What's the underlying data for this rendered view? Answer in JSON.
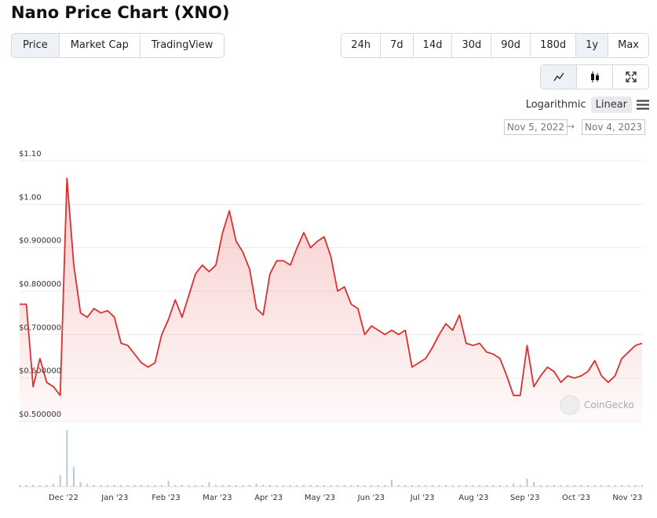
{
  "header": {
    "title": "Nano Price Chart (XNO)"
  },
  "tabs": [
    "Price",
    "Market Cap",
    "TradingView"
  ],
  "ranges": [
    "24h",
    "7d",
    "14d",
    "30d",
    "90d",
    "180d",
    "1y",
    "Max"
  ],
  "scale_options": [
    "Logarithmic",
    "Linear"
  ],
  "date_from": "Nov 5, 2022",
  "date_to": "Nov 4, 2023",
  "watermark": "CoinGecko",
  "chart_data": {
    "type": "line",
    "series": [
      {
        "name": "Price",
        "color": "#dc2f2f",
        "values": [
          0.77,
          0.77,
          0.58,
          0.645,
          0.59,
          0.58,
          0.56,
          1.06,
          0.86,
          0.75,
          0.74,
          0.76,
          0.75,
          0.755,
          0.74,
          0.68,
          0.675,
          0.655,
          0.635,
          0.625,
          0.635,
          0.7,
          0.735,
          0.78,
          0.74,
          0.79,
          0.84,
          0.86,
          0.845,
          0.86,
          0.935,
          0.985,
          0.915,
          0.89,
          0.85,
          0.76,
          0.745,
          0.84,
          0.87,
          0.87,
          0.86,
          0.9,
          0.935,
          0.9,
          0.915,
          0.925,
          0.88,
          0.8,
          0.81,
          0.77,
          0.76,
          0.7,
          0.72,
          0.71,
          0.7,
          0.71,
          0.7,
          0.71,
          0.625,
          0.635,
          0.645,
          0.67,
          0.7,
          0.725,
          0.71,
          0.745,
          0.68,
          0.675,
          0.68,
          0.66,
          0.655,
          0.645,
          0.605,
          0.56,
          0.56,
          0.675,
          0.58,
          0.605,
          0.625,
          0.615,
          0.59,
          0.605,
          0.6,
          0.605,
          0.615,
          0.64,
          0.605,
          0.59,
          0.605,
          0.645,
          0.66,
          0.675,
          0.68
        ]
      }
    ],
    "volume": {
      "color": "#b9c7dc",
      "values": [
        3,
        3,
        3,
        3,
        3,
        5,
        20,
        100,
        35,
        8,
        5,
        3,
        3,
        3,
        3,
        3,
        3,
        3,
        3,
        3,
        3,
        3,
        10,
        3,
        3,
        3,
        3,
        3,
        8,
        3,
        3,
        3,
        3,
        3,
        3,
        5,
        3,
        3,
        3,
        3,
        3,
        3,
        3,
        3,
        3,
        3,
        3,
        3,
        3,
        3,
        3,
        3,
        3,
        3,
        3,
        12,
        3,
        3,
        3,
        3,
        3,
        3,
        3,
        3,
        3,
        3,
        3,
        3,
        3,
        3,
        3,
        3,
        3,
        5,
        3,
        14,
        8,
        3,
        3,
        3,
        3,
        3,
        3,
        3,
        3,
        3,
        3,
        3,
        3,
        3,
        3,
        3,
        3
      ]
    },
    "xticks": [
      "Dec '22",
      "Jan '23",
      "Feb '23",
      "Mar '23",
      "Apr '23",
      "May '23",
      "Jun '23",
      "Jul '23",
      "Aug '23",
      "Sep '23",
      "Oct '23",
      "Nov '23"
    ],
    "ylim": [
      0.5,
      1.1
    ],
    "yticks": [
      {
        "value": 1.1,
        "label": "$1.10"
      },
      {
        "value": 1.0,
        "label": "$1.00"
      },
      {
        "value": 0.9,
        "label": "$0.900000"
      },
      {
        "value": 0.8,
        "label": "$0.800000"
      },
      {
        "value": 0.7,
        "label": "$0.700000"
      },
      {
        "value": 0.6,
        "label": "$0.600000"
      },
      {
        "value": 0.5,
        "label": "$0.500000"
      }
    ],
    "grid": true
  }
}
